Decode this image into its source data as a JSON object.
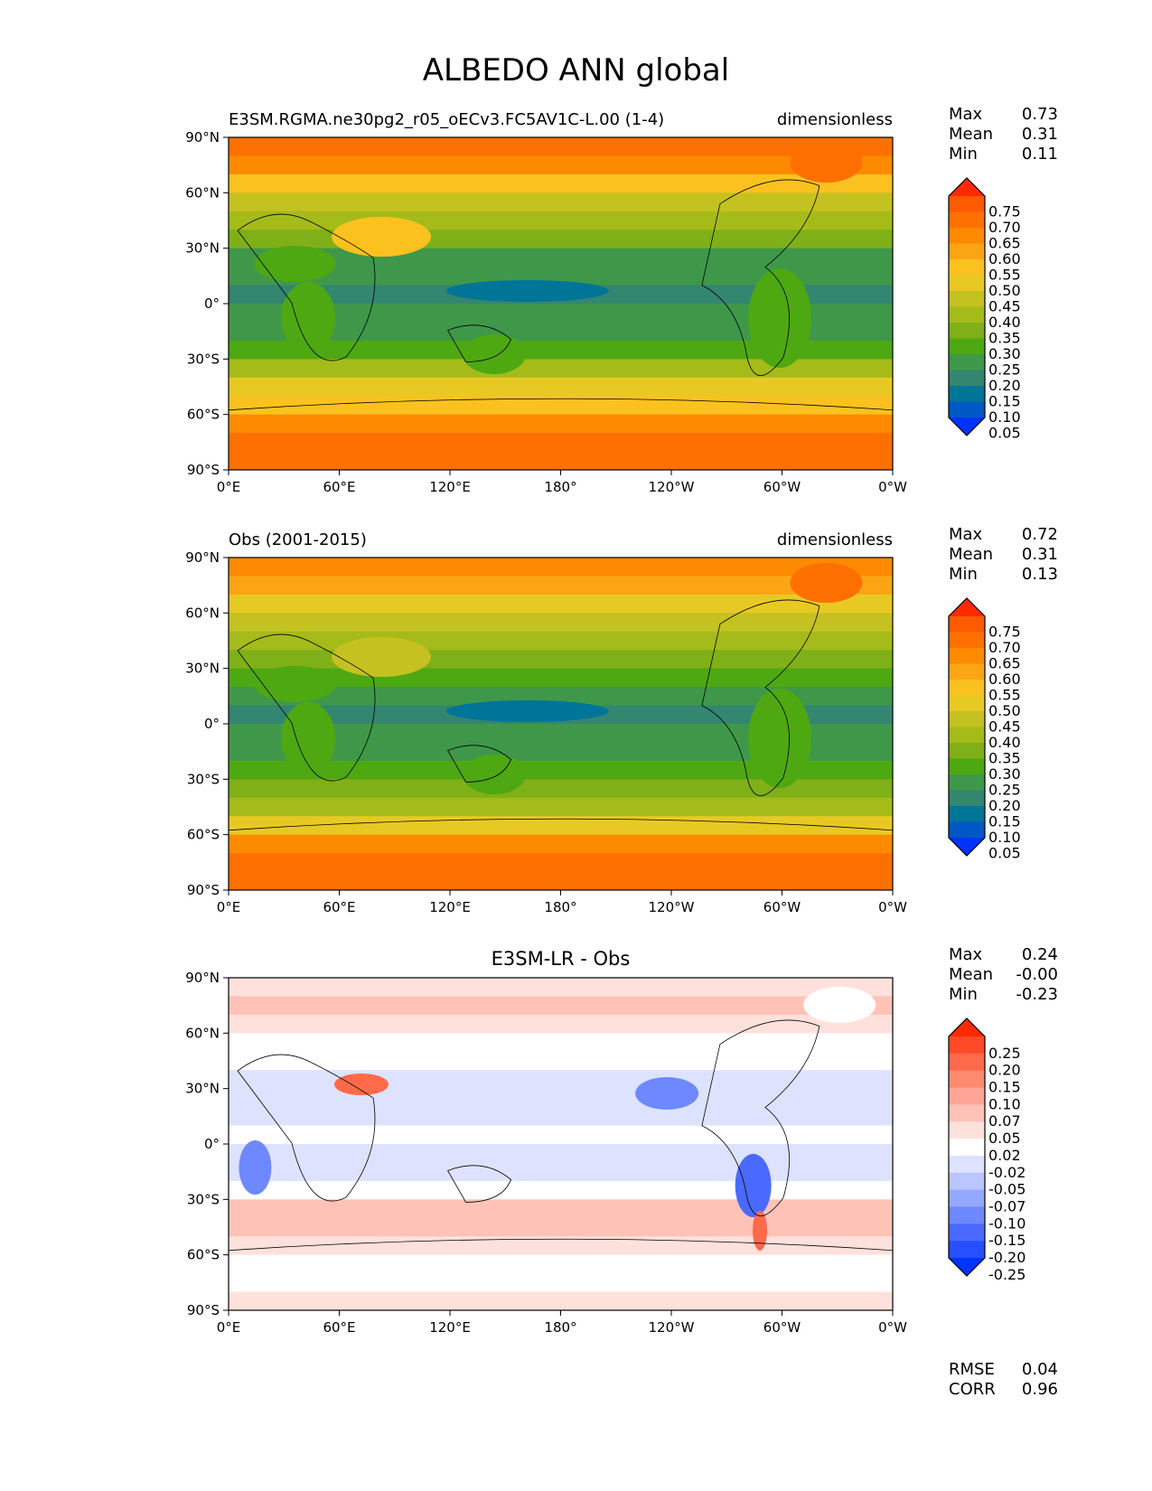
{
  "title": "ALBEDO ANN global",
  "chart_data": [
    {
      "type": "heatmap",
      "title_left": "E3SM.RGMA.ne30pg2_r05_oECv3.FC5AV1C-L.00 (1-4)",
      "title_center": "",
      "title_right": "dimensionless",
      "stats": [
        {
          "label": "Max",
          "value": "0.73"
        },
        {
          "label": "Mean",
          "value": "0.31"
        },
        {
          "label": "Min",
          "value": "0.11"
        }
      ],
      "levels": [
        "0.75",
        "0.70",
        "0.65",
        "0.60",
        "0.55",
        "0.50",
        "0.45",
        "0.40",
        "0.35",
        "0.30",
        "0.25",
        "0.20",
        "0.15",
        "0.10",
        "0.05"
      ],
      "colors": [
        "#ff2a00",
        "#fe5a00",
        "#fd7000",
        "#fd8a00",
        "#fba514",
        "#fbc21f",
        "#e8c923",
        "#c5c120",
        "#a5bb1a",
        "#7fb017",
        "#4ea812",
        "#3f984a",
        "#338670",
        "#007598",
        "#0058c7",
        "#0033ff"
      ],
      "zonal_profile": [
        0.66,
        0.62,
        0.52,
        0.44,
        0.38,
        0.31,
        0.25,
        0.22,
        0.19,
        0.21,
        0.23,
        0.27,
        0.36,
        0.46,
        0.52,
        0.62,
        0.68,
        0.7
      ],
      "xticks": [
        "0°E",
        "60°E",
        "120°E",
        "180°",
        "120°W",
        "60°W",
        "0°W"
      ],
      "yticks": [
        "90°N",
        "60°N",
        "30°N",
        "0°",
        "30°S",
        "60°S",
        "90°S"
      ]
    },
    {
      "type": "heatmap",
      "title_left": "Obs (2001-2015)",
      "title_center": "",
      "title_right": "dimensionless",
      "stats": [
        {
          "label": "Max",
          "value": "0.72"
        },
        {
          "label": "Mean",
          "value": "0.31"
        },
        {
          "label": "Min",
          "value": "0.13"
        }
      ],
      "levels": [
        "0.75",
        "0.70",
        "0.65",
        "0.60",
        "0.55",
        "0.50",
        "0.45",
        "0.40",
        "0.35",
        "0.30",
        "0.25",
        "0.20",
        "0.15",
        "0.10",
        "0.05"
      ],
      "colors": [
        "#ff2a00",
        "#fe5a00",
        "#fd7000",
        "#fd8a00",
        "#fba514",
        "#fbc21f",
        "#e8c923",
        "#c5c120",
        "#a5bb1a",
        "#7fb017",
        "#4ea812",
        "#3f984a",
        "#338670",
        "#007598",
        "#0058c7",
        "#0033ff"
      ],
      "zonal_profile": [
        0.62,
        0.56,
        0.48,
        0.42,
        0.38,
        0.33,
        0.27,
        0.24,
        0.2,
        0.23,
        0.25,
        0.27,
        0.32,
        0.4,
        0.5,
        0.62,
        0.68,
        0.68
      ],
      "xticks": [
        "0°E",
        "60°E",
        "120°E",
        "180°",
        "120°W",
        "60°W",
        "0°W"
      ],
      "yticks": [
        "90°N",
        "60°N",
        "30°N",
        "0°",
        "30°S",
        "60°S",
        "90°S"
      ]
    },
    {
      "type": "heatmap",
      "title_left": "",
      "title_center": "E3SM-LR - Obs",
      "title_right": "",
      "stats": [
        {
          "label": "Max",
          "value": "0.24"
        },
        {
          "label": "Mean",
          "value": "-0.00"
        },
        {
          "label": "Min",
          "value": "-0.23"
        }
      ],
      "extra_stats": [
        {
          "label": "RMSE",
          "value": "0.04"
        },
        {
          "label": "CORR",
          "value": "0.96"
        }
      ],
      "levels": [
        "0.25",
        "0.20",
        "0.15",
        "0.10",
        "0.07",
        "0.05",
        "0.02",
        "-0.02",
        "-0.05",
        "-0.07",
        "-0.10",
        "-0.15",
        "-0.20",
        "-0.25"
      ],
      "colors": [
        "#ff2a00",
        "#ff4a28",
        "#ff6a4a",
        "#ff8a70",
        "#ffa595",
        "#ffc2b6",
        "#ffe1dc",
        "#ffffff",
        "#dde3ff",
        "#b9c6ff",
        "#93a8ff",
        "#6e89ff",
        "#4a6aff",
        "#2650ff",
        "#0033ff"
      ],
      "zonal_profile": [
        0.05,
        0.06,
        0.03,
        0.02,
        0.0,
        -0.02,
        -0.02,
        -0.03,
        0.0,
        -0.02,
        -0.02,
        0.0,
        0.06,
        0.07,
        0.03,
        0.0,
        0.0,
        0.03
      ],
      "xticks": [
        "0°E",
        "60°E",
        "120°E",
        "180°",
        "120°W",
        "60°W",
        "0°W"
      ],
      "yticks": [
        "90°N",
        "60°N",
        "30°N",
        "0°",
        "30°S",
        "60°S",
        "90°S"
      ]
    }
  ]
}
